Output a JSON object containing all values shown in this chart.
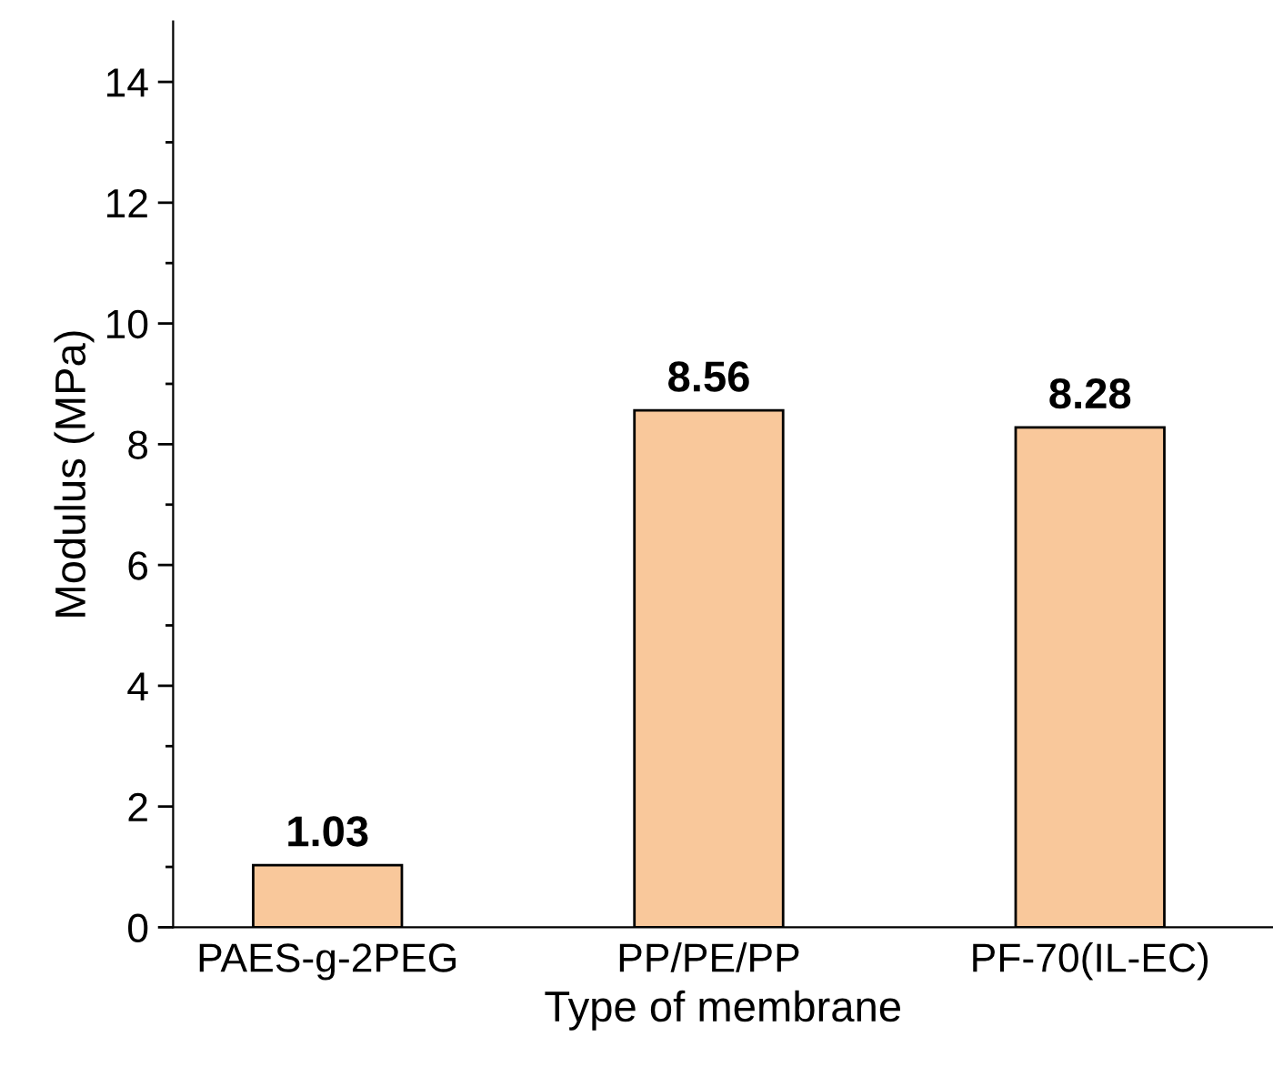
{
  "chart_data": {
    "type": "bar",
    "xlabel": "Type of membrane",
    "ylabel": "Modulus (MPa)",
    "categories": [
      "PAES-g-2PEG",
      "PP/PE/PP",
      "PF-70(IL-EC)"
    ],
    "values": [
      1.03,
      8.56,
      8.28
    ],
    "color": "#f9c89b",
    "data_labels": true,
    "ylim": [
      0,
      15
    ],
    "yticks": [
      0,
      {
        "value": 1,
        "label": null
      },
      2,
      {
        "value": 3,
        "label": null
      },
      4,
      {
        "value": 5,
        "label": null
      },
      6,
      {
        "value": 7,
        "label": null
      },
      8,
      {
        "value": 9,
        "label": null
      },
      10,
      {
        "value": 11,
        "label": null
      },
      12,
      {
        "value": 13,
        "label": null
      },
      14
    ],
    "grid": false,
    "legend": false
  }
}
